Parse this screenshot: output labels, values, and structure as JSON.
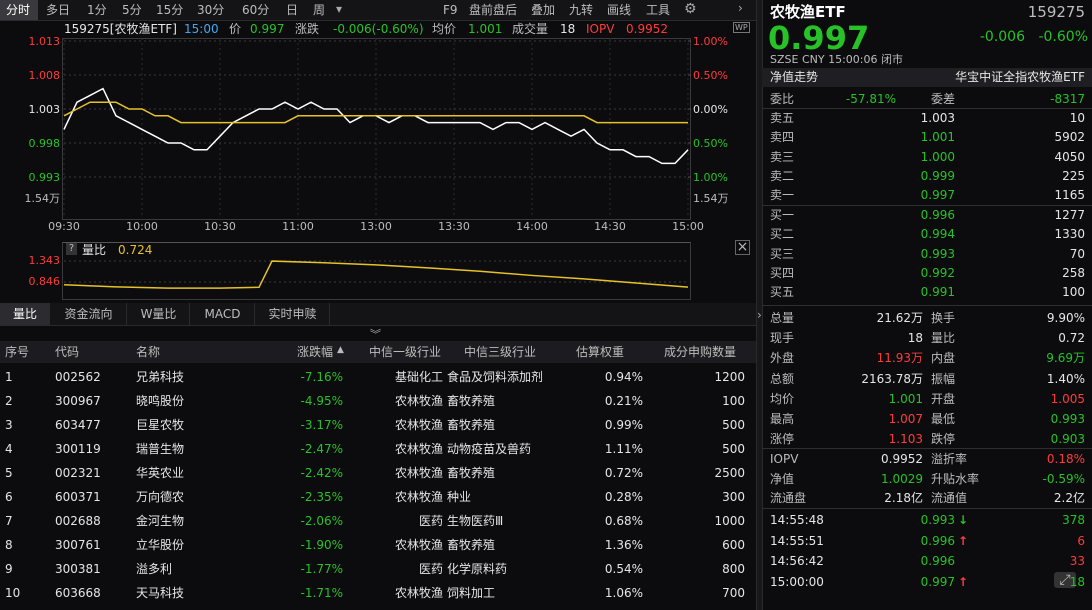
{
  "toolbar": {
    "periods": [
      "分时",
      "多日",
      "1分",
      "5分",
      "15分",
      "30分",
      "60分",
      "日",
      "周"
    ],
    "tools": [
      "F9",
      "盘前盘后",
      "叠加",
      "九转",
      "画线",
      "工具"
    ]
  },
  "header": {
    "code": "159275[农牧渔ETF]",
    "time": "15:00",
    "price": "0.997",
    "change_label": "涨跌",
    "change": "-0.006(-0.60%)",
    "avg": "1.001",
    "vol_label": "成交量",
    "vol": "18",
    "iopv_label": "IOPV",
    "iopv": "0.9952"
  },
  "chart_data": {
    "type": "line",
    "x": [
      "09:30",
      "09:35",
      "09:40",
      "09:45",
      "09:50",
      "09:55",
      "10:00",
      "10:05",
      "10:10",
      "10:15",
      "10:20",
      "10:25",
      "10:30",
      "10:35",
      "10:40",
      "10:45",
      "10:50",
      "10:55",
      "11:00",
      "11:05",
      "11:10",
      "11:15",
      "11:20",
      "11:25",
      "11:30",
      "13:05",
      "13:10",
      "13:15",
      "13:20",
      "13:25",
      "13:30",
      "13:35",
      "13:40",
      "13:45",
      "13:50",
      "13:55",
      "14:00",
      "14:05",
      "14:10",
      "14:15",
      "14:20",
      "14:25",
      "14:30",
      "14:35",
      "14:40",
      "14:45",
      "14:50",
      "14:55",
      "15:00"
    ],
    "series": [
      {
        "name": "价",
        "color": "#ffffff",
        "values": [
          1.0,
          1.004,
          1.005,
          1.006,
          1.002,
          1.001,
          1.0,
          0.999,
          0.998,
          0.998,
          0.997,
          0.997,
          0.999,
          1.001,
          1.002,
          1.003,
          1.003,
          1.004,
          1.003,
          1.004,
          1.003,
          1.003,
          1.001,
          1.002,
          1.002,
          1.001,
          1.002,
          1.002,
          1.001,
          1.001,
          1.001,
          1.001,
          1.001,
          1.0,
          1.001,
          1.001,
          1.0,
          1.001,
          1.0,
          0.999,
          1.0,
          0.998,
          0.997,
          0.997,
          0.996,
          0.996,
          0.995,
          0.995,
          0.997
        ]
      },
      {
        "name": "均价",
        "color": "#e6c229",
        "values": [
          1.002,
          1.003,
          1.004,
          1.004,
          1.004,
          1.003,
          1.003,
          1.002,
          1.002,
          1.001,
          1.001,
          1.001,
          1.001,
          1.001,
          1.001,
          1.001,
          1.001,
          1.001,
          1.002,
          1.002,
          1.002,
          1.002,
          1.002,
          1.002,
          1.002,
          1.002,
          1.002,
          1.002,
          1.002,
          1.002,
          1.002,
          1.002,
          1.002,
          1.002,
          1.002,
          1.002,
          1.002,
          1.002,
          1.002,
          1.002,
          1.002,
          1.001,
          1.001,
          1.001,
          1.001,
          1.001,
          1.001,
          1.001,
          1.001
        ]
      }
    ],
    "ylim": [
      0.993,
      1.013
    ],
    "yticks": [
      1.013,
      1.008,
      1.003,
      0.998,
      0.993
    ],
    "y2lim": [
      -1,
      1
    ],
    "y2ticks": [
      {
        "value": 1,
        "label": "1.00%"
      },
      {
        "value": 0.5,
        "label": "0.50%"
      },
      {
        "value": 0,
        "label": "0.00%"
      },
      {
        "value": -0.5,
        "label": "0.50%"
      },
      {
        "value": -1,
        "label": "1.00%"
      }
    ],
    "xticks": [
      "09:30",
      "10:00",
      "10:30",
      "11:00",
      "13:00",
      "13:30",
      "14:00",
      "14:30",
      "15:00"
    ],
    "volume_label": "1.54万"
  },
  "ratio_chart": {
    "type": "line",
    "title": "量比",
    "value": "0.724",
    "color": "#e6c229",
    "x": [
      "09:30",
      "09:50",
      "10:10",
      "10:30",
      "10:45",
      "10:50",
      "11:10",
      "11:30",
      "13:20",
      "13:40",
      "14:00",
      "14:20",
      "14:40",
      "15:00"
    ],
    "values": [
      0.78,
      0.73,
      0.7,
      0.7,
      0.72,
      1.34,
      1.3,
      1.25,
      1.18,
      1.1,
      1.0,
      0.92,
      0.82,
      0.724
    ],
    "ylim": [
      0.49,
      1.72
    ],
    "yticks": [
      1.343,
      0.846
    ]
  },
  "tabs": [
    "量比",
    "资金流向",
    "W量比",
    "MACD",
    "实时申赎"
  ],
  "table": {
    "columns": [
      "序号",
      "代码",
      "名称",
      "涨跌幅",
      "中信一级行业",
      "中信三级行业",
      "估算权重",
      "成分申购数量"
    ],
    "rows": [
      [
        "1",
        "002562",
        "兄弟科技",
        "-7.16%",
        "基础化工",
        "食品及饲料添加剂",
        "0.94%",
        "1200"
      ],
      [
        "2",
        "300967",
        "晓鸣股份",
        "-4.95%",
        "农林牧渔",
        "畜牧养殖",
        "0.21%",
        "100"
      ],
      [
        "3",
        "603477",
        "巨星农牧",
        "-3.17%",
        "农林牧渔",
        "畜牧养殖",
        "0.99%",
        "500"
      ],
      [
        "4",
        "300119",
        "瑞普生物",
        "-2.47%",
        "农林牧渔",
        "动物疫苗及兽药",
        "1.11%",
        "500"
      ],
      [
        "5",
        "002321",
        "华英农业",
        "-2.42%",
        "农林牧渔",
        "畜牧养殖",
        "0.72%",
        "2500"
      ],
      [
        "6",
        "600371",
        "万向德农",
        "-2.35%",
        "农林牧渔",
        "种业",
        "0.28%",
        "300"
      ],
      [
        "7",
        "002688",
        "金河生物",
        "-2.06%",
        "医药",
        "生物医药Ⅲ",
        "0.68%",
        "1000"
      ],
      [
        "8",
        "300761",
        "立华股份",
        "-1.90%",
        "农林牧渔",
        "畜牧养殖",
        "1.36%",
        "600"
      ],
      [
        "9",
        "300381",
        "溢多利",
        "-1.77%",
        "医药",
        "化学原料药",
        "0.54%",
        "800"
      ],
      [
        "10",
        "603668",
        "天马科技",
        "-1.71%",
        "农林牧渔",
        "饲料加工",
        "1.06%",
        "700"
      ]
    ]
  },
  "quote": {
    "name": "农牧渔ETF",
    "code": "159275",
    "price": "0.997",
    "change": "-0.006",
    "pct": "-0.60%",
    "meta": "SZSE  CNY  15:00:06  闭市",
    "nav_title": "净值走势",
    "fund": "华宝中证全指农牧渔ETF",
    "ratio": [
      "委比",
      "-57.81%",
      "委差",
      "-8317"
    ],
    "sells": [
      [
        "卖五",
        "1.003",
        "10"
      ],
      [
        "卖四",
        "1.001",
        "5902"
      ],
      [
        "卖三",
        "1.000",
        "4050"
      ],
      [
        "卖二",
        "0.999",
        "225"
      ],
      [
        "卖一",
        "0.997",
        "1165"
      ]
    ],
    "buys": [
      [
        "买一",
        "0.996",
        "1277"
      ],
      [
        "买二",
        "0.994",
        "1330"
      ],
      [
        "买三",
        "0.993",
        "70"
      ],
      [
        "买四",
        "0.992",
        "258"
      ],
      [
        "买五",
        "0.991",
        "100"
      ]
    ],
    "stats": [
      [
        "总量",
        "21.62万",
        "换手",
        "9.90%"
      ],
      [
        "现手",
        "18",
        "量比",
        "0.72"
      ],
      [
        "外盘",
        "11.93万",
        "内盘",
        "9.69万"
      ],
      [
        "总额",
        "2163.78万",
        "振幅",
        "1.40%"
      ],
      [
        "均价",
        "1.001",
        "开盘",
        "1.005"
      ],
      [
        "最高",
        "1.007",
        "最低",
        "0.993"
      ],
      [
        "涨停",
        "1.103",
        "跌停",
        "0.903"
      ]
    ],
    "etf": [
      [
        "IOPV",
        "0.9952",
        "溢折率",
        "0.18%"
      ],
      [
        "净值",
        "1.0029",
        "升贴水率",
        "-0.59%"
      ],
      [
        "流通盘",
        "2.18亿",
        "流通值",
        "2.2亿"
      ]
    ],
    "ticks": [
      [
        "14:55:48",
        "0.993",
        "378"
      ],
      [
        "14:55:51",
        "0.996",
        "6"
      ],
      [
        "14:56:42",
        "0.996",
        "33"
      ],
      [
        "15:00:00",
        "0.997",
        "18"
      ]
    ]
  }
}
